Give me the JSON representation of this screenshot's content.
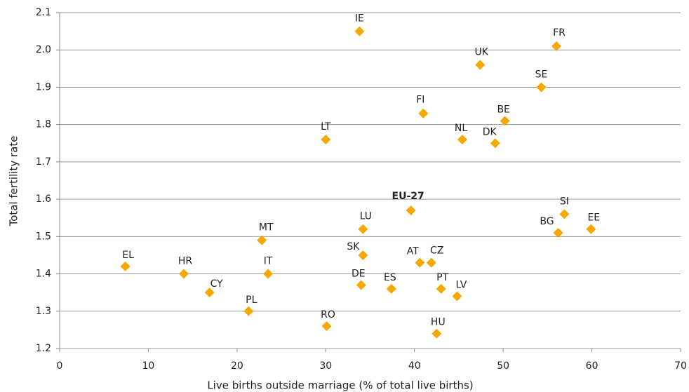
{
  "chart_data": {
    "type": "scatter",
    "x_label": "Live births outside marriage (% of total live births)",
    "y_label": "Total fertility rate",
    "point_labels": [
      "IE",
      "FR",
      "UK",
      "SE",
      "FI",
      "BE",
      "LT",
      "NL",
      "DK",
      "EU-27",
      "SI",
      "LU",
      "EE",
      "BG",
      "MT",
      "SK",
      "EL",
      "AT",
      "CZ",
      "HR",
      "IT",
      "DE",
      "ES",
      "PT",
      "CY",
      "LV",
      "PL",
      "RO",
      "HU"
    ],
    "x": [
      33.8,
      56.0,
      47.4,
      54.3,
      41.0,
      50.2,
      30.0,
      45.4,
      49.1,
      39.6,
      56.9,
      34.2,
      59.9,
      56.2,
      22.8,
      34.2,
      7.4,
      40.6,
      41.9,
      14.0,
      23.5,
      34.0,
      37.4,
      43.0,
      16.9,
      44.8,
      21.3,
      30.1,
      42.5
    ],
    "values": [
      2.05,
      2.01,
      1.96,
      1.9,
      1.83,
      1.81,
      1.76,
      1.76,
      1.75,
      1.57,
      1.56,
      1.52,
      1.52,
      1.51,
      1.49,
      1.45,
      1.42,
      1.43,
      1.43,
      1.4,
      1.4,
      1.37,
      1.36,
      1.36,
      1.35,
      1.34,
      1.3,
      1.26,
      1.24
    ],
    "color": "#f7a800",
    "xlim": [
      0,
      70
    ],
    "xticks": [
      0,
      10,
      20,
      30,
      40,
      50,
      60,
      70
    ],
    "ylim": [
      1.2,
      2.1
    ],
    "yticks": [
      1.2,
      1.3,
      1.4,
      1.5,
      1.6,
      1.7,
      1.8,
      1.9,
      {
        "value": 2,
        "label": "2.0"
      },
      2.1
    ],
    "grid": true
  }
}
